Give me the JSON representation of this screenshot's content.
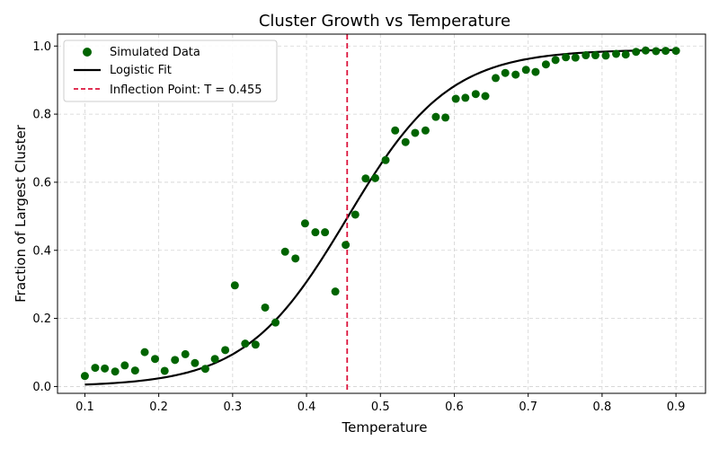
{
  "chart_data": {
    "type": "scatter",
    "title": "Cluster Growth vs Temperature",
    "xlabel": "Temperature",
    "ylabel": "Fraction of Largest Cluster",
    "xlim": [
      0.063,
      0.94
    ],
    "ylim": [
      -0.02,
      1.035
    ],
    "x_ticks": [
      0.1,
      0.2,
      0.3,
      0.4,
      0.5,
      0.6,
      0.7,
      0.8,
      0.9
    ],
    "x_tick_labels": [
      "0.1",
      "0.2",
      "0.3",
      "0.4",
      "0.5",
      "0.6",
      "0.7",
      "0.8",
      "0.9"
    ],
    "y_ticks": [
      0.0,
      0.2,
      0.4,
      0.6,
      0.8,
      1.0
    ],
    "y_tick_labels": [
      "0.0",
      "0.2",
      "0.4",
      "0.6",
      "0.8",
      "1.0"
    ],
    "grid": true,
    "legend_position": "top-left",
    "series": [
      {
        "name": "Simulated Data",
        "kind": "scatter",
        "color": "#006400",
        "points": [
          [
            0.1,
            0.031
          ],
          [
            0.114,
            0.055
          ],
          [
            0.127,
            0.053
          ],
          [
            0.141,
            0.044
          ],
          [
            0.154,
            0.062
          ],
          [
            0.168,
            0.047
          ],
          [
            0.181,
            0.101
          ],
          [
            0.195,
            0.081
          ],
          [
            0.208,
            0.046
          ],
          [
            0.222,
            0.078
          ],
          [
            0.236,
            0.095
          ],
          [
            0.249,
            0.069
          ],
          [
            0.263,
            0.052
          ],
          [
            0.276,
            0.081
          ],
          [
            0.29,
            0.107
          ],
          [
            0.303,
            0.297
          ],
          [
            0.317,
            0.126
          ],
          [
            0.331,
            0.123
          ],
          [
            0.344,
            0.232
          ],
          [
            0.358,
            0.188
          ],
          [
            0.371,
            0.396
          ],
          [
            0.385,
            0.376
          ],
          [
            0.398,
            0.479
          ],
          [
            0.412,
            0.453
          ],
          [
            0.425,
            0.453
          ],
          [
            0.439,
            0.279
          ],
          [
            0.453,
            0.416
          ],
          [
            0.466,
            0.505
          ],
          [
            0.48,
            0.611
          ],
          [
            0.493,
            0.612
          ],
          [
            0.507,
            0.665
          ],
          [
            0.52,
            0.752
          ],
          [
            0.534,
            0.718
          ],
          [
            0.547,
            0.745
          ],
          [
            0.561,
            0.752
          ],
          [
            0.575,
            0.792
          ],
          [
            0.588,
            0.79
          ],
          [
            0.602,
            0.845
          ],
          [
            0.615,
            0.848
          ],
          [
            0.629,
            0.859
          ],
          [
            0.642,
            0.853
          ],
          [
            0.656,
            0.906
          ],
          [
            0.669,
            0.921
          ],
          [
            0.683,
            0.916
          ],
          [
            0.697,
            0.93
          ],
          [
            0.71,
            0.924
          ],
          [
            0.724,
            0.946
          ],
          [
            0.737,
            0.959
          ],
          [
            0.751,
            0.967
          ],
          [
            0.764,
            0.966
          ],
          [
            0.778,
            0.973
          ],
          [
            0.791,
            0.973
          ],
          [
            0.805,
            0.972
          ],
          [
            0.819,
            0.977
          ],
          [
            0.832,
            0.975
          ],
          [
            0.846,
            0.983
          ],
          [
            0.859,
            0.987
          ],
          [
            0.873,
            0.985
          ],
          [
            0.886,
            0.986
          ],
          [
            0.9,
            0.986
          ]
        ]
      },
      {
        "name": "Logistic Fit",
        "kind": "line",
        "color": "#000000",
        "model": {
          "L": 0.99,
          "k": 14.5,
          "x0": 0.455
        },
        "x_range": [
          0.1,
          0.9
        ]
      },
      {
        "name": "Inflection Point: T = 0.455",
        "kind": "vline",
        "color": "#dc143c",
        "x": 0.455
      }
    ]
  }
}
